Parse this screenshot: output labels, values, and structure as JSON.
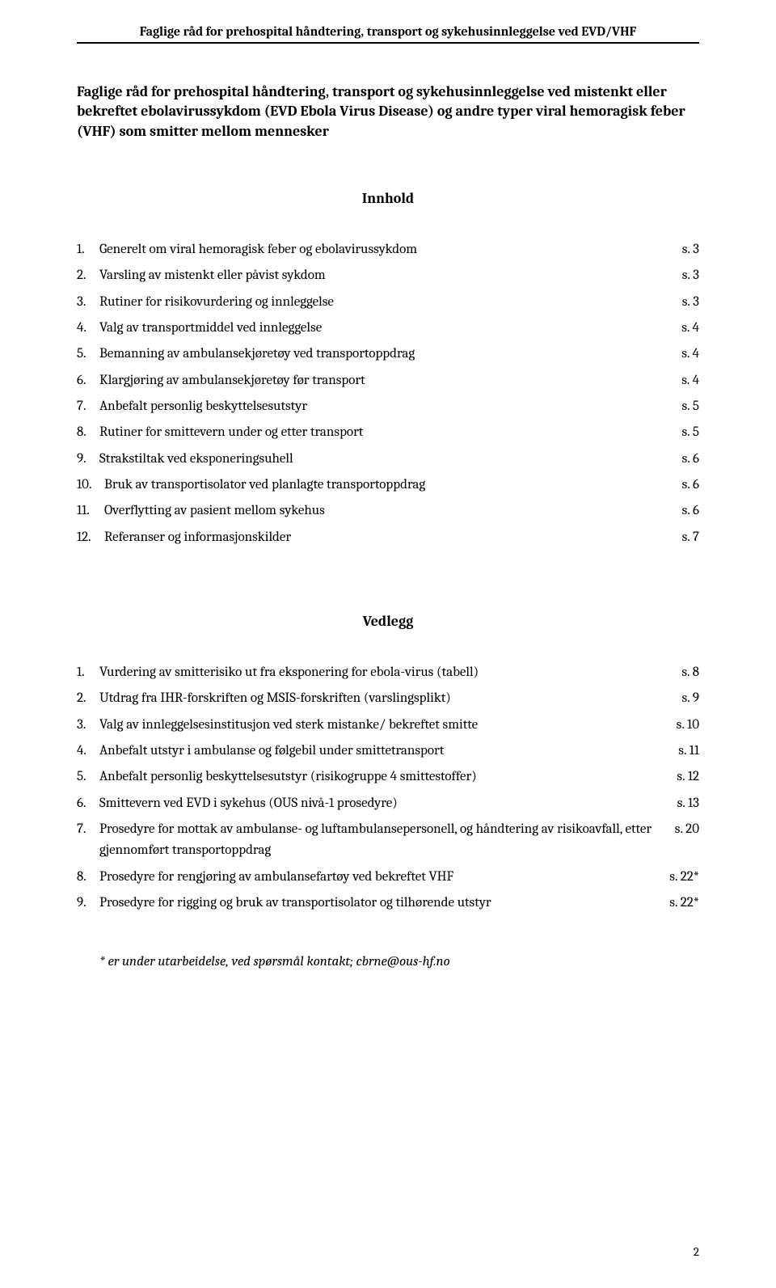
{
  "header": {
    "running_title": "Faglige råd for prehospital håndtering, transport og sykehusinnleggelse ved EVD/VHF"
  },
  "title": "Faglige råd for prehospital håndtering, transport og sykehusinnleggelse ved mistenkt eller bekreftet ebolavirussykdom (EVD Ebola Virus Disease) og andre typer viral hemoragisk feber (VHF) som smitter mellom mennesker",
  "innhold": {
    "heading": "Innhold",
    "items": [
      {
        "num": "1.",
        "text": "Generelt om viral hemoragisk feber og ebolavirussykdom",
        "page": "s. 3"
      },
      {
        "num": "2.",
        "text": "Varsling av mistenkt eller påvist sykdom",
        "page": "s. 3"
      },
      {
        "num": "3.",
        "text": "Rutiner for risikovurdering og innleggelse",
        "page": "s. 3"
      },
      {
        "num": "4.",
        "text": "Valg av transportmiddel ved innleggelse",
        "page": "s. 4"
      },
      {
        "num": "5.",
        "text": "Bemanning av ambulansekjøretøy ved transportoppdrag",
        "page": "s. 4"
      },
      {
        "num": "6.",
        "text": "Klargjøring av ambulansekjøretøy før transport",
        "page": "s. 4"
      },
      {
        "num": "7.",
        "text": "Anbefalt personlig beskyttelsesutstyr",
        "page": "s. 5"
      },
      {
        "num": "8.",
        "text": "Rutiner for smittevern under og etter transport",
        "page": "s. 5"
      },
      {
        "num": "9.",
        "text": "Strakstiltak ved eksponeringsuhell",
        "page": "s. 6"
      },
      {
        "num": "10.",
        "text": "Bruk av transportisolator ved planlagte transportoppdrag",
        "page": "s. 6"
      },
      {
        "num": "11.",
        "text": "Overflytting av pasient mellom sykehus",
        "page": "s. 6"
      },
      {
        "num": "12.",
        "text": "Referanser og informasjonskilder",
        "page": "s. 7"
      }
    ]
  },
  "vedlegg": {
    "heading": "Vedlegg",
    "items": [
      {
        "num": "1.",
        "text": "Vurdering av smitterisiko ut fra eksponering for ebola-virus (tabell)",
        "page": "s. 8"
      },
      {
        "num": "2.",
        "text": "Utdrag fra IHR-forskriften og MSIS-forskriften (varslingsplikt)",
        "page": "s. 9"
      },
      {
        "num": "3.",
        "text": "Valg av innleggelsesinstitusjon ved sterk mistanke/ bekreftet smitte",
        "page": "s. 10"
      },
      {
        "num": "4.",
        "text": "Anbefalt utstyr i ambulanse og følgebil under smittetransport",
        "page": "s. 11"
      },
      {
        "num": "5.",
        "text": "Anbefalt personlig beskyttelsesutstyr (risikogruppe 4 smittestoffer)",
        "page": "s. 12"
      },
      {
        "num": "6.",
        "text": "Smittevern ved EVD i sykehus (OUS nivå-1 prosedyre)",
        "page": "s. 13"
      },
      {
        "num": "7.",
        "text": "Prosedyre for mottak av ambulanse- og luftambulansepersonell, og håndtering av risikoavfall, etter gjennomført transportoppdrag",
        "page": "s. 20"
      },
      {
        "num": "8.",
        "text": "Prosedyre for rengjøring av ambulansefartøy ved bekreftet VHF",
        "page": "s. 22*"
      },
      {
        "num": "9.",
        "text": "Prosedyre for rigging og bruk av transportisolator og tilhørende utstyr",
        "page": "s. 22*"
      }
    ]
  },
  "footnote": "* er under utarbeidelse, ved spørsmål kontakt; cbrne@ous-hf.no",
  "page_number": "2"
}
